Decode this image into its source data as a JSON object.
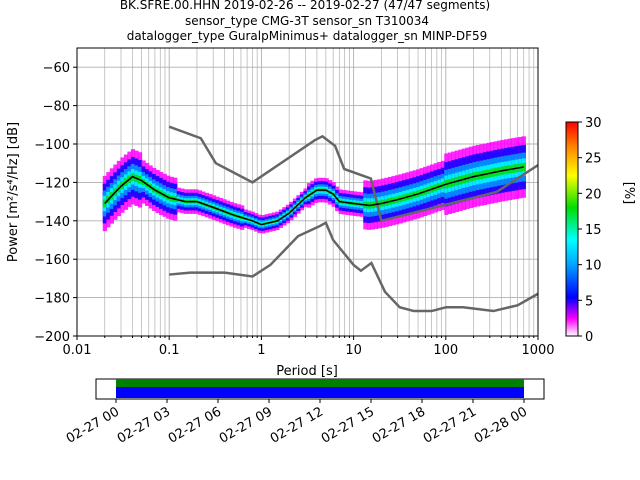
{
  "chart_data": [
    {
      "type": "heatmap",
      "title": [
        "BK.SFRE.00.HHN   2019-02-26 -- 2019-02-27  (47/47 segments)",
        "sensor_type CMG-3T sensor_sn T310034",
        "datalogger_type GuralpMinimus+ datalogger_sn MINP-DF59"
      ],
      "xlabel": "Period [s]",
      "ylabel": "Power [m²/s⁴/Hz] [dB]",
      "x_scale": "log",
      "xlim": [
        0.01,
        1000
      ],
      "ylim": [
        -200,
        -50
      ],
      "xticks": [
        "0.01",
        "0.1",
        "1",
        "10",
        "100",
        "1000"
      ],
      "yticks": [
        "-200",
        "-180",
        "-160",
        "-140",
        "-120",
        "-100",
        "-80",
        "-60"
      ],
      "grid": true,
      "colorbar": {
        "label": "[%]",
        "range": [
          0,
          30
        ],
        "ticks": [
          "0",
          "5",
          "10",
          "15",
          "20",
          "25",
          "30"
        ]
      },
      "mean_curve": {
        "x": [
          0.02,
          0.025,
          0.03,
          0.04,
          0.05,
          0.07,
          0.1,
          0.15,
          0.2,
          0.3,
          0.5,
          0.8,
          1,
          1.5,
          2,
          3,
          4,
          5,
          6,
          7,
          10,
          15,
          20,
          30,
          50,
          100,
          200,
          400,
          700
        ],
        "y": [
          -131,
          -126,
          -122,
          -117,
          -119,
          -124,
          -128,
          -130,
          -130,
          -133,
          -137,
          -140,
          -142,
          -140,
          -136,
          -128,
          -124,
          -124,
          -126,
          -130,
          -131,
          -132,
          -131,
          -129,
          -126,
          -121,
          -117,
          -114,
          -112
        ]
      },
      "nlnm": {
        "x": [
          0.1,
          0.17,
          0.4,
          0.8,
          1.25,
          2.5,
          4.2,
          5,
          6,
          10,
          12,
          15.6,
          21.9,
          31.6,
          45,
          70,
          101,
          154,
          328,
          600,
          1000
        ],
        "y": [
          -168,
          -167,
          -167,
          -169,
          -163,
          -148,
          -143,
          -141,
          -150,
          -163,
          -166,
          -162,
          -177,
          -185,
          -187,
          -187,
          -185,
          -185,
          -187,
          -184,
          -178
        ]
      },
      "nhnm": {
        "x": [
          0.1,
          0.22,
          0.32,
          0.8,
          3.8,
          4.6,
          6.3,
          7.9,
          15.4,
          20,
          354.8,
          1000
        ],
        "y": [
          -91,
          -97,
          -110,
          -120,
          -98,
          -96,
          -101,
          -113,
          -118,
          -140,
          -125,
          -111
        ]
      }
    },
    {
      "type": "bar",
      "title": "",
      "x_ticks": [
        "02-27 00",
        "02-27 03",
        "02-27 06",
        "02-27 09",
        "02-27 12",
        "02-27 15",
        "02-27 18",
        "02-27 21",
        "02-28 00"
      ],
      "coverage": [
        {
          "name": "",
          "color": "#008000",
          "start": "02-27 00",
          "end": "02-28 00"
        },
        {
          "name": "",
          "color": "#0000ff",
          "start": "02-27 00",
          "end": "02-28 00"
        }
      ]
    }
  ],
  "colors": {
    "mean_curve": "#000000",
    "noise_models": "#666666",
    "grid": "#b0b0b0"
  }
}
